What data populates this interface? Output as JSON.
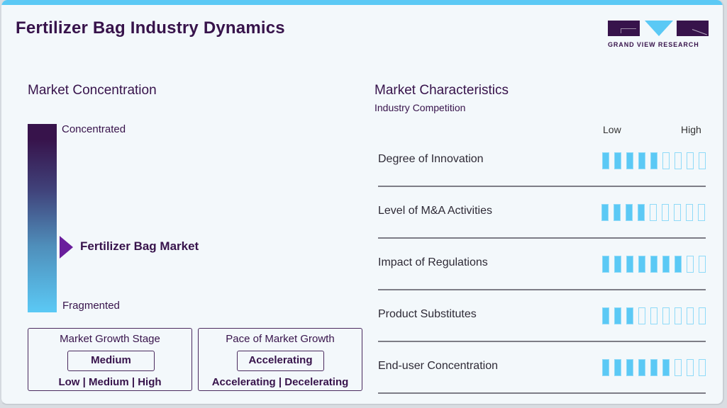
{
  "header": {
    "title": "Fertilizer Bag Industry Dynamics",
    "logo_text": "GRAND VIEW RESEARCH",
    "accent_color": "#5bc9f5",
    "brand_color": "#37134b"
  },
  "concentration": {
    "title": "Market Concentration",
    "top_label": "Concentrated",
    "bottom_label": "Fragmented",
    "marker_label": "Fertilizer Bag Market",
    "marker_color": "#6a1e9c"
  },
  "growth_stage": {
    "title": "Market Growth Stage",
    "value": "Medium",
    "options": "Low | Medium | High"
  },
  "growth_pace": {
    "title": "Pace of Market Growth",
    "value": "Accelerating",
    "options": "Accelerating | Decelerating"
  },
  "characteristics": {
    "title": "Market Characteristics",
    "subtitle": "Industry Competition",
    "scale_low": "Low",
    "scale_high": "High",
    "max": 9,
    "rows": [
      {
        "label": "Degree of Innovation",
        "value": 5
      },
      {
        "label": "Level of M&A Activities",
        "value": 4
      },
      {
        "label": "Impact of Regulations",
        "value": 7
      },
      {
        "label": "Product Substitutes",
        "value": 3
      },
      {
        "label": "End-user Concentration",
        "value": 6
      }
    ]
  },
  "chart_data": {
    "type": "table",
    "title": "Fertilizer Bag Industry Dynamics",
    "market_concentration": "Between Concentrated and Fragmented (closer to Fragmented)",
    "market_growth_stage": "Medium",
    "pace_of_market_growth": "Accelerating",
    "categories": [
      "Degree of Innovation",
      "Level of M&A Activities",
      "Impact of Regulations",
      "Product Substitutes",
      "End-user Concentration"
    ],
    "values": [
      5,
      4,
      7,
      3,
      6
    ],
    "scale": [
      0,
      9
    ],
    "xlabel": "Low → High"
  }
}
